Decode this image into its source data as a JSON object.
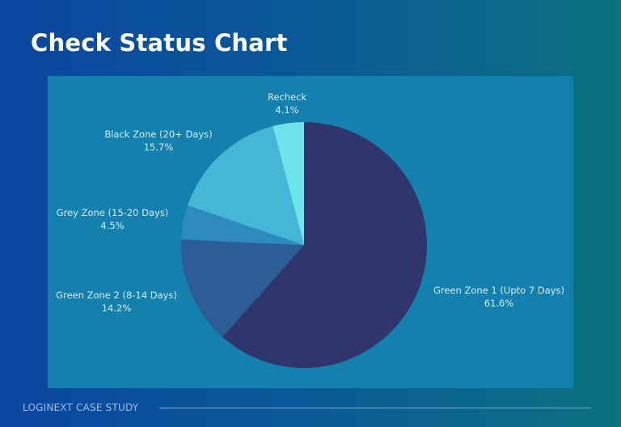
{
  "header": {
    "title": "Check Status Chart"
  },
  "footer": {
    "text": "LOGINEXT CASE STUDY"
  },
  "colors": {
    "panel_bg": "#1380ad",
    "green_zone_1": "#30356b",
    "green_zone_2": "#2c5d94",
    "grey_zone": "#2d8bbd",
    "black_zone": "#44b6d6",
    "recheck": "#6ee3ea"
  },
  "labels": {
    "recheck": {
      "name": "Recheck",
      "pct": "4.1%"
    },
    "black_zone": {
      "name": "Black Zone (20+ Days)",
      "pct": "15.7%"
    },
    "grey_zone": {
      "name": "Grey Zone (15-20 Days)",
      "pct": "4.5%"
    },
    "green_zone_2": {
      "name": "Green Zone 2 (8-14 Days)",
      "pct": "14.2%"
    },
    "green_zone_1": {
      "name": "Green Zone 1 (Upto 7 Days)",
      "pct": "61.6%"
    }
  },
  "chart_data": {
    "type": "pie",
    "title": "Check Status Chart",
    "categories": [
      "Green Zone 1 (Upto 7 Days)",
      "Green Zone 2 (8-14 Days)",
      "Grey Zone (15-20 Days)",
      "Black Zone (20+ Days)",
      "Recheck"
    ],
    "values": [
      61.6,
      14.2,
      4.5,
      15.7,
      4.1
    ],
    "colors": [
      "#30356b",
      "#2c5d94",
      "#2d8bbd",
      "#44b6d6",
      "#6ee3ea"
    ],
    "start_angle": "12 o'clock, clockwise",
    "legend": "none (direct labels)"
  }
}
